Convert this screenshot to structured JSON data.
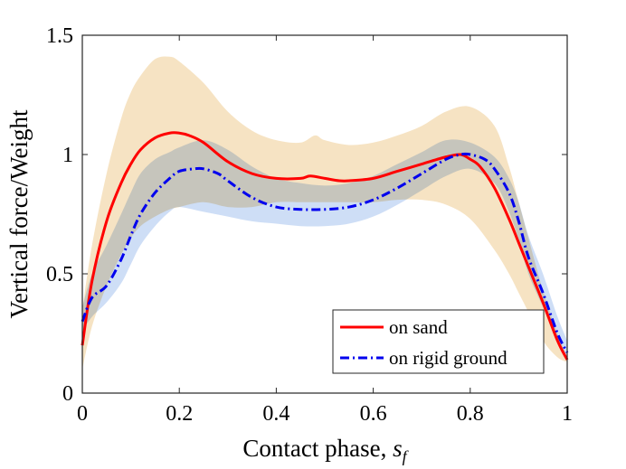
{
  "chart_data": {
    "type": "line",
    "title": "",
    "xlabel": "Contact phase,",
    "xlabel_symbol": "s",
    "xlabel_subscript": "f",
    "ylabel": "Vertical force/Weight",
    "xlim": [
      0,
      1
    ],
    "ylim": [
      0,
      1.5
    ],
    "xticks": [
      0,
      0.2,
      0.4,
      0.6,
      0.8,
      1
    ],
    "xtick_labels": [
      "0",
      "0.2",
      "0.4",
      "0.6",
      "0.8",
      "1"
    ],
    "yticks": [
      0,
      0.5,
      1,
      1.5
    ],
    "ytick_labels": [
      "0",
      "0.5",
      "1",
      "1.5"
    ],
    "grid": false,
    "legend_position": "bottom-right",
    "series": [
      {
        "name": "on sand",
        "color": "#ff0000",
        "style": "solid",
        "x": [
          0,
          0.02,
          0.05,
          0.08,
          0.1,
          0.12,
          0.15,
          0.18,
          0.2,
          0.22,
          0.25,
          0.3,
          0.35,
          0.4,
          0.45,
          0.47,
          0.5,
          0.53,
          0.55,
          0.6,
          0.65,
          0.7,
          0.75,
          0.78,
          0.8,
          0.82,
          0.85,
          0.88,
          0.9,
          0.92,
          0.95,
          0.98,
          1.0
        ],
        "y": [
          0.2,
          0.47,
          0.72,
          0.88,
          0.96,
          1.02,
          1.07,
          1.09,
          1.09,
          1.08,
          1.05,
          0.97,
          0.92,
          0.9,
          0.9,
          0.91,
          0.9,
          0.89,
          0.89,
          0.9,
          0.93,
          0.96,
          0.99,
          1.0,
          0.98,
          0.95,
          0.86,
          0.73,
          0.63,
          0.53,
          0.38,
          0.22,
          0.14
        ]
      },
      {
        "name": "on rigid ground",
        "color": "#0000ee",
        "style": "dashdot",
        "x": [
          0,
          0.02,
          0.05,
          0.08,
          0.1,
          0.12,
          0.15,
          0.18,
          0.2,
          0.23,
          0.25,
          0.28,
          0.3,
          0.35,
          0.4,
          0.45,
          0.5,
          0.55,
          0.6,
          0.65,
          0.7,
          0.75,
          0.78,
          0.8,
          0.83,
          0.85,
          0.88,
          0.9,
          0.92,
          0.95,
          0.98,
          1.0
        ],
        "y": [
          0.3,
          0.4,
          0.45,
          0.56,
          0.66,
          0.75,
          0.84,
          0.9,
          0.93,
          0.94,
          0.94,
          0.92,
          0.89,
          0.82,
          0.78,
          0.77,
          0.77,
          0.78,
          0.81,
          0.86,
          0.92,
          0.98,
          1.0,
          1.0,
          0.98,
          0.94,
          0.84,
          0.72,
          0.57,
          0.42,
          0.25,
          0.17
        ]
      }
    ],
    "bands": [
      {
        "name": "on sand range",
        "color": "#f5deb8",
        "x": [
          0,
          0.02,
          0.05,
          0.08,
          0.1,
          0.12,
          0.15,
          0.18,
          0.2,
          0.25,
          0.3,
          0.35,
          0.4,
          0.45,
          0.48,
          0.5,
          0.55,
          0.6,
          0.65,
          0.7,
          0.75,
          0.8,
          0.85,
          0.88,
          0.9,
          0.92,
          0.95,
          0.98,
          1.0
        ],
        "upper": [
          0.35,
          0.62,
          0.92,
          1.15,
          1.26,
          1.33,
          1.4,
          1.41,
          1.39,
          1.3,
          1.18,
          1.1,
          1.06,
          1.05,
          1.08,
          1.06,
          1.04,
          1.05,
          1.08,
          1.12,
          1.18,
          1.2,
          1.12,
          0.95,
          0.8,
          0.65,
          0.43,
          0.25,
          0.15
        ],
        "lower": [
          0.1,
          0.28,
          0.45,
          0.58,
          0.65,
          0.7,
          0.74,
          0.77,
          0.78,
          0.8,
          0.78,
          0.78,
          0.8,
          0.8,
          0.8,
          0.8,
          0.8,
          0.8,
          0.81,
          0.81,
          0.79,
          0.73,
          0.6,
          0.5,
          0.42,
          0.34,
          0.22,
          0.15,
          0.13
        ]
      },
      {
        "name": "on rigid ground range",
        "color": "#aec8f0",
        "x": [
          0,
          0.02,
          0.05,
          0.08,
          0.1,
          0.12,
          0.15,
          0.18,
          0.2,
          0.25,
          0.3,
          0.35,
          0.4,
          0.45,
          0.5,
          0.55,
          0.6,
          0.65,
          0.7,
          0.75,
          0.8,
          0.85,
          0.88,
          0.9,
          0.92,
          0.95,
          0.98,
          1.0
        ],
        "upper": [
          0.36,
          0.5,
          0.62,
          0.75,
          0.84,
          0.92,
          0.98,
          1.01,
          1.03,
          1.06,
          1.02,
          0.95,
          0.9,
          0.88,
          0.87,
          0.88,
          0.91,
          0.96,
          1.01,
          1.06,
          1.05,
          0.99,
          0.9,
          0.8,
          0.66,
          0.5,
          0.32,
          0.22
        ],
        "lower": [
          0.26,
          0.32,
          0.38,
          0.46,
          0.54,
          0.62,
          0.7,
          0.76,
          0.78,
          0.76,
          0.74,
          0.72,
          0.71,
          0.7,
          0.7,
          0.71,
          0.74,
          0.79,
          0.85,
          0.91,
          0.94,
          0.88,
          0.76,
          0.64,
          0.5,
          0.36,
          0.22,
          0.15
        ]
      }
    ]
  }
}
